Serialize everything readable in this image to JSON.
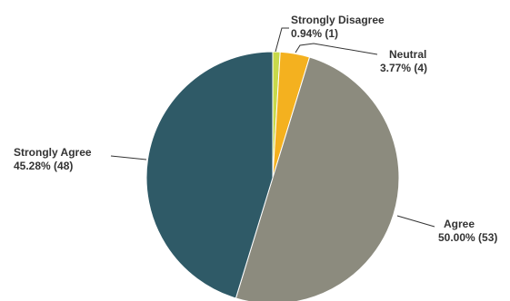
{
  "chart_data": {
    "type": "pie",
    "start": "top",
    "direction": "clockwise",
    "slices": [
      {
        "label": "Strongly Disagree",
        "value_text": "0.94% (1)",
        "percent": 0.94,
        "count": 1,
        "color": "#c8d94a"
      },
      {
        "label": "Neutral",
        "value_text": "3.77% (4)",
        "percent": 3.77,
        "count": 4,
        "color": "#f4b11f"
      },
      {
        "label": "Agree",
        "value_text": "50.00% (53)",
        "percent": 50.0,
        "count": 53,
        "color": "#8c8b7e"
      },
      {
        "label": "Strongly Agree",
        "value_text": "45.28% (48)",
        "percent": 45.28,
        "count": 48,
        "color": "#2f5a67"
      }
    ]
  }
}
